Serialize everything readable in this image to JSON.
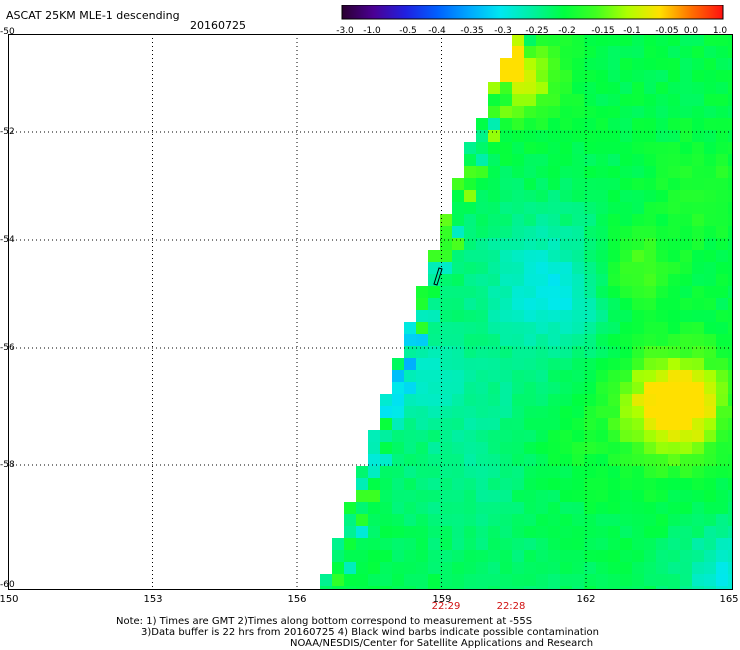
{
  "header": {
    "title": "ASCAT 25KM MLE-1 descending",
    "date": "20160725"
  },
  "colorbar": {
    "ticks": [
      "-3.0",
      "-1.0",
      "-0.5",
      "-0.4",
      "-0.35",
      "-0.3",
      "-0.25",
      "-0.2",
      "-0.15",
      "-0.1",
      "-0.05",
      "0.0",
      "1.0"
    ],
    "colors": [
      "#2a0030",
      "#4b0094",
      "#2020e0",
      "#0060ff",
      "#00a8ff",
      "#00e8f0",
      "#00f0a0",
      "#00ff40",
      "#40ff20",
      "#b0ff00",
      "#ffe000",
      "#ff7000",
      "#ff1010"
    ]
  },
  "map": {
    "lat_labels": [
      "-50",
      "-52",
      "-54",
      "-56",
      "-58",
      "-60"
    ],
    "lon_labels": [
      "150",
      "153",
      "156",
      "159",
      "162",
      "165"
    ],
    "pass_times": [
      "22:29",
      "22:28"
    ]
  },
  "notes": {
    "line1": "Note: 1) Times are GMT 2)Times along bottom correspond to measurement at -55S",
    "line2": "3)Data buffer is 22 hrs from 20160725 4) Black wind barbs indicate possible contamination",
    "line3": "NOAA/NESDIS/Center for Satellite Applications and Research"
  }
}
